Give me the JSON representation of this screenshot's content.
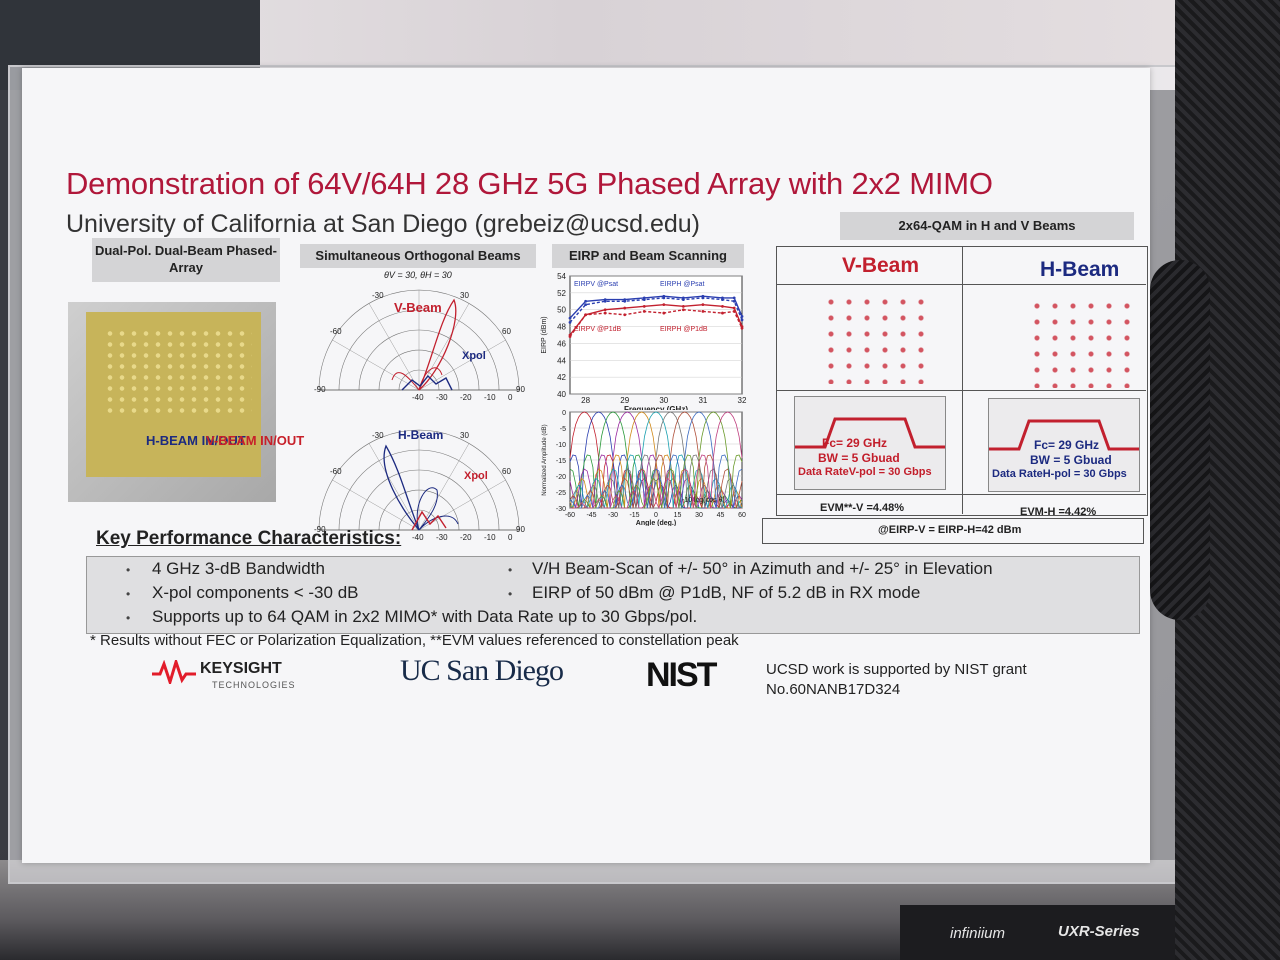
{
  "poster": {
    "title": "Demonstration of 64V/64H 28 GHz 5G Phased Array with 2x2 MIMO",
    "subtitle": "University of California at San Diego (grebeiz@ucsd.edu)",
    "panels": {
      "array": {
        "header": "Dual-Pol. Dual-Beam Phased-Array",
        "h_label": "H-BEAM IN/OUT",
        "v_label": "V-BEAM IN/OUT"
      },
      "beams": {
        "header": "Simultaneous Orthogonal Beams",
        "theta_note": "θV = 30, θH = 30",
        "v_beam": "V-Beam",
        "h_beam": "H-Beam",
        "xpol": "Xpol",
        "xpol2": "Xpol",
        "angle_ticks": [
          "-90",
          "-60",
          "-30",
          "30",
          "60",
          "90"
        ],
        "radial_ticks": [
          "-40",
          "-30",
          "-20",
          "-10",
          "0"
        ]
      },
      "eirp": {
        "header": "EIRP and Beam Scanning"
      },
      "qam": {
        "header": "2x64-QAM in H and V Beams",
        "v_title": "V-Beam",
        "h_title": "H-Beam",
        "v_fc": "Fc= 29 GHz",
        "v_bw": "BW = 5 Gbuad",
        "v_rate": "Data RateV-pol = 30 Gbps",
        "h_fc": "Fc= 29 GHz",
        "h_bw": "BW = 5 Gbuad",
        "h_rate": "Data RateH-pol = 30 Gbps",
        "evm_v": "EVM**-V =4.48%",
        "evm_h": "EVM-H =4.42%",
        "eirp_note": "@EIRP-V = EIRP-H=42 dBm"
      }
    },
    "kpc": {
      "title": "Key Performance Characteristics:",
      "items": [
        "4 GHz 3-dB Bandwidth",
        "X-pol components < -30 dB",
        "Supports up to 64 QAM in 2x2 MIMO* with Data Rate up to 30 Gbps/pol.",
        "V/H Beam-Scan of +/- 50° in Azimuth and +/- 25° in Elevation",
        "EIRP of 50 dBm @ P1dB, NF of 5.2 dB in RX mode"
      ]
    },
    "footnote": "* Results without FEC or Polarization Equalization, **EVM values referenced to constellation peak",
    "logos": {
      "keysight": "KEYSIGHT",
      "keysight_sub": "TECHNOLOGIES",
      "ucsd": "UC San Diego",
      "nist": "NIST"
    },
    "nist_note_line1": "UCSD work is supported by NIST grant",
    "nist_note_line2": "No.60NANB17D324"
  },
  "device": {
    "brand": "infiniium",
    "series": "UXR-Series"
  },
  "chart_data": [
    {
      "type": "line",
      "xlabel": "Frequency (GHz)",
      "ylabel": "EIRP (dBm)",
      "x_ticks": [
        "28",
        "29",
        "30",
        "31",
        "32"
      ],
      "y_ticks": [
        "40",
        "42",
        "44",
        "46",
        "48",
        "50",
        "52",
        "54"
      ],
      "xlim": [
        27.6,
        32
      ],
      "ylim": [
        40,
        54
      ],
      "series": [
        {
          "name": "EIRPV @Psat",
          "color": "#2b3fb0",
          "x": [
            27.6,
            28,
            28.5,
            29,
            29.5,
            30,
            30.5,
            31,
            31.5,
            31.8,
            32
          ],
          "y": [
            49,
            51,
            51.2,
            51.2,
            51.4,
            51.6,
            51.4,
            51.6,
            51.4,
            51.4,
            49.2
          ]
        },
        {
          "name": "EIRPH @Psat",
          "color": "#2b3fb0",
          "x": [
            27.6,
            28,
            28.5,
            29,
            29.5,
            30,
            30.5,
            31,
            31.5,
            31.8,
            32
          ],
          "y": [
            48.5,
            50.6,
            51,
            51,
            51.2,
            51.4,
            51.2,
            51.4,
            51.2,
            51,
            48.8
          ]
        },
        {
          "name": "EIRPV @P1dB",
          "color": "#c2202e",
          "x": [
            27.6,
            28,
            28.5,
            29,
            29.5,
            30,
            30.5,
            31,
            31.5,
            31.8,
            32
          ],
          "y": [
            47,
            49.4,
            50,
            50.2,
            50.4,
            50.6,
            50.4,
            50.6,
            50.4,
            50.2,
            48
          ]
        },
        {
          "name": "EIRPH @P1dB",
          "color": "#c2202e",
          "x": [
            27.6,
            28,
            28.5,
            29,
            29.5,
            30,
            30.5,
            31,
            31.5,
            31.8,
            32
          ],
          "y": [
            46.8,
            49.4,
            49.6,
            49.4,
            49.8,
            49.6,
            50,
            49.8,
            49.6,
            49.8,
            47.8
          ]
        }
      ]
    },
    {
      "type": "line",
      "xlabel": "Angle (deg.)",
      "ylabel": "Normalized Amplitude (dB)",
      "x_ticks": [
        "-60",
        "-45",
        "-30",
        "-15",
        "0",
        "15",
        "30",
        "45",
        "60"
      ],
      "y_ticks": [
        "0",
        "-5",
        "-10",
        "-15",
        "-20",
        "-25",
        "-30"
      ],
      "xlim": [
        -60,
        60
      ],
      "ylim": [
        -30,
        0
      ],
      "legend": "-10 log(cos θ)",
      "beam_centers": [
        -50,
        -40,
        -30,
        -20,
        -10,
        0,
        10,
        20,
        30,
        40,
        50
      ]
    }
  ]
}
